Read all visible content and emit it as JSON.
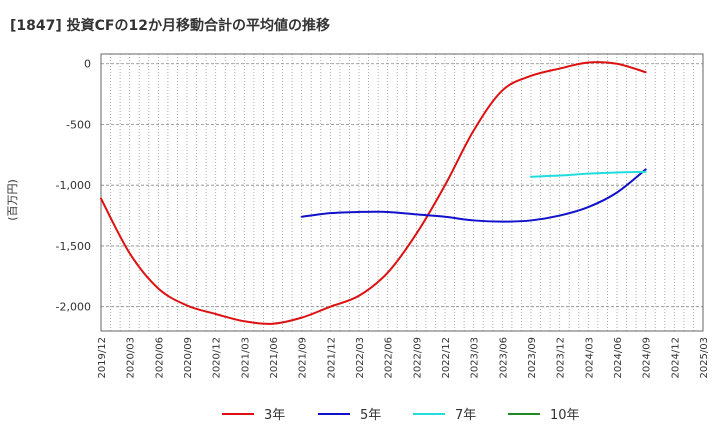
{
  "chart_data": {
    "type": "line",
    "title": "[1847]  投資CFの12か月移動合計の平均値の推移",
    "ylabel": "(百万円)",
    "xlabel": "",
    "ylim": [
      -2200,
      80
    ],
    "yticks": [
      0,
      -500,
      -1000,
      -1500,
      -2000
    ],
    "ytick_labels": [
      "0",
      "-500",
      "-1,000",
      "-1,500",
      "-2,000"
    ],
    "xtick_labels": [
      "2019/12",
      "2020/03",
      "2020/06",
      "2020/09",
      "2020/12",
      "2021/03",
      "2021/06",
      "2021/09",
      "2021/12",
      "2022/03",
      "2022/06",
      "2022/09",
      "2022/12",
      "2023/03",
      "2023/06",
      "2023/09",
      "2023/12",
      "2024/03",
      "2024/06",
      "2024/09",
      "2024/12",
      "2025/03"
    ],
    "grid": true,
    "legend_position": "bottom",
    "series": [
      {
        "name": "3年",
        "color": "#dd1111",
        "values": [
          [
            0,
            -1110
          ],
          [
            1,
            -1560
          ],
          [
            2,
            -1850
          ],
          [
            3,
            -1990
          ],
          [
            4,
            -2060
          ],
          [
            5,
            -2120
          ],
          [
            6,
            -2140
          ],
          [
            7,
            -2090
          ],
          [
            8,
            -2000
          ],
          [
            9,
            -1910
          ],
          [
            10,
            -1720
          ],
          [
            11,
            -1400
          ],
          [
            12,
            -1000
          ],
          [
            13,
            -550
          ],
          [
            14,
            -220
          ],
          [
            15,
            -100
          ],
          [
            16,
            -40
          ],
          [
            17,
            10
          ],
          [
            18,
            0
          ],
          [
            19,
            -70
          ]
        ]
      },
      {
        "name": "5年",
        "color": "#1111cc",
        "values": [
          [
            7,
            -1260
          ],
          [
            8,
            -1230
          ],
          [
            9,
            -1220
          ],
          [
            10,
            -1220
          ],
          [
            11,
            -1240
          ],
          [
            12,
            -1260
          ],
          [
            13,
            -1290
          ],
          [
            14,
            -1300
          ],
          [
            15,
            -1290
          ],
          [
            16,
            -1250
          ],
          [
            17,
            -1180
          ],
          [
            18,
            -1060
          ],
          [
            19,
            -870
          ]
        ]
      },
      {
        "name": "7年",
        "color": "#22dddd",
        "values": [
          [
            15,
            -930
          ],
          [
            16,
            -920
          ],
          [
            17,
            -905
          ],
          [
            18,
            -895
          ],
          [
            19,
            -890
          ]
        ]
      },
      {
        "name": "10年",
        "color": "#228822",
        "values": []
      }
    ]
  }
}
